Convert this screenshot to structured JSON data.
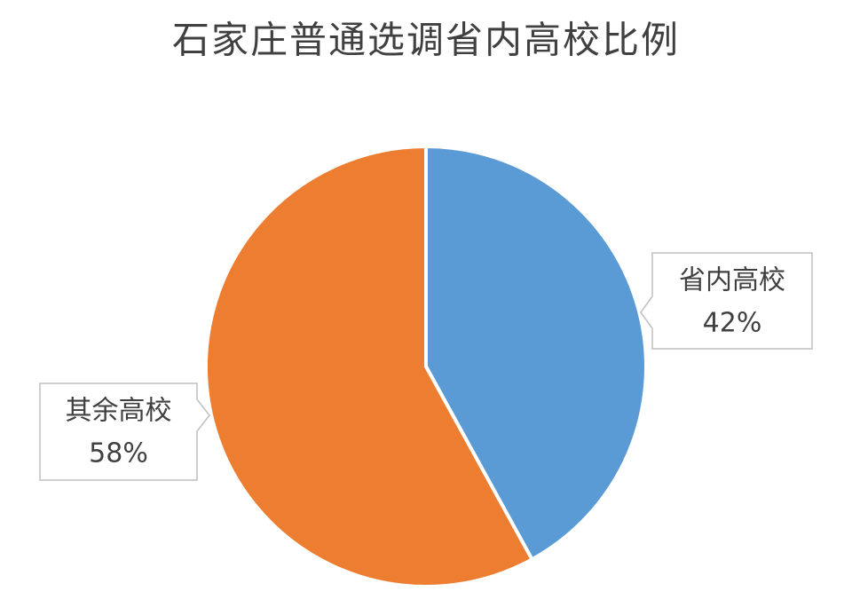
{
  "chart_data": {
    "type": "pie",
    "title": "石家庄普通选调省内高校比例",
    "categories": [
      "省内高校",
      "其余高校"
    ],
    "values": [
      42,
      58
    ],
    "value_labels": [
      "42%",
      "58%"
    ],
    "colors": [
      "#5b9bd5",
      "#ed7d31"
    ]
  }
}
